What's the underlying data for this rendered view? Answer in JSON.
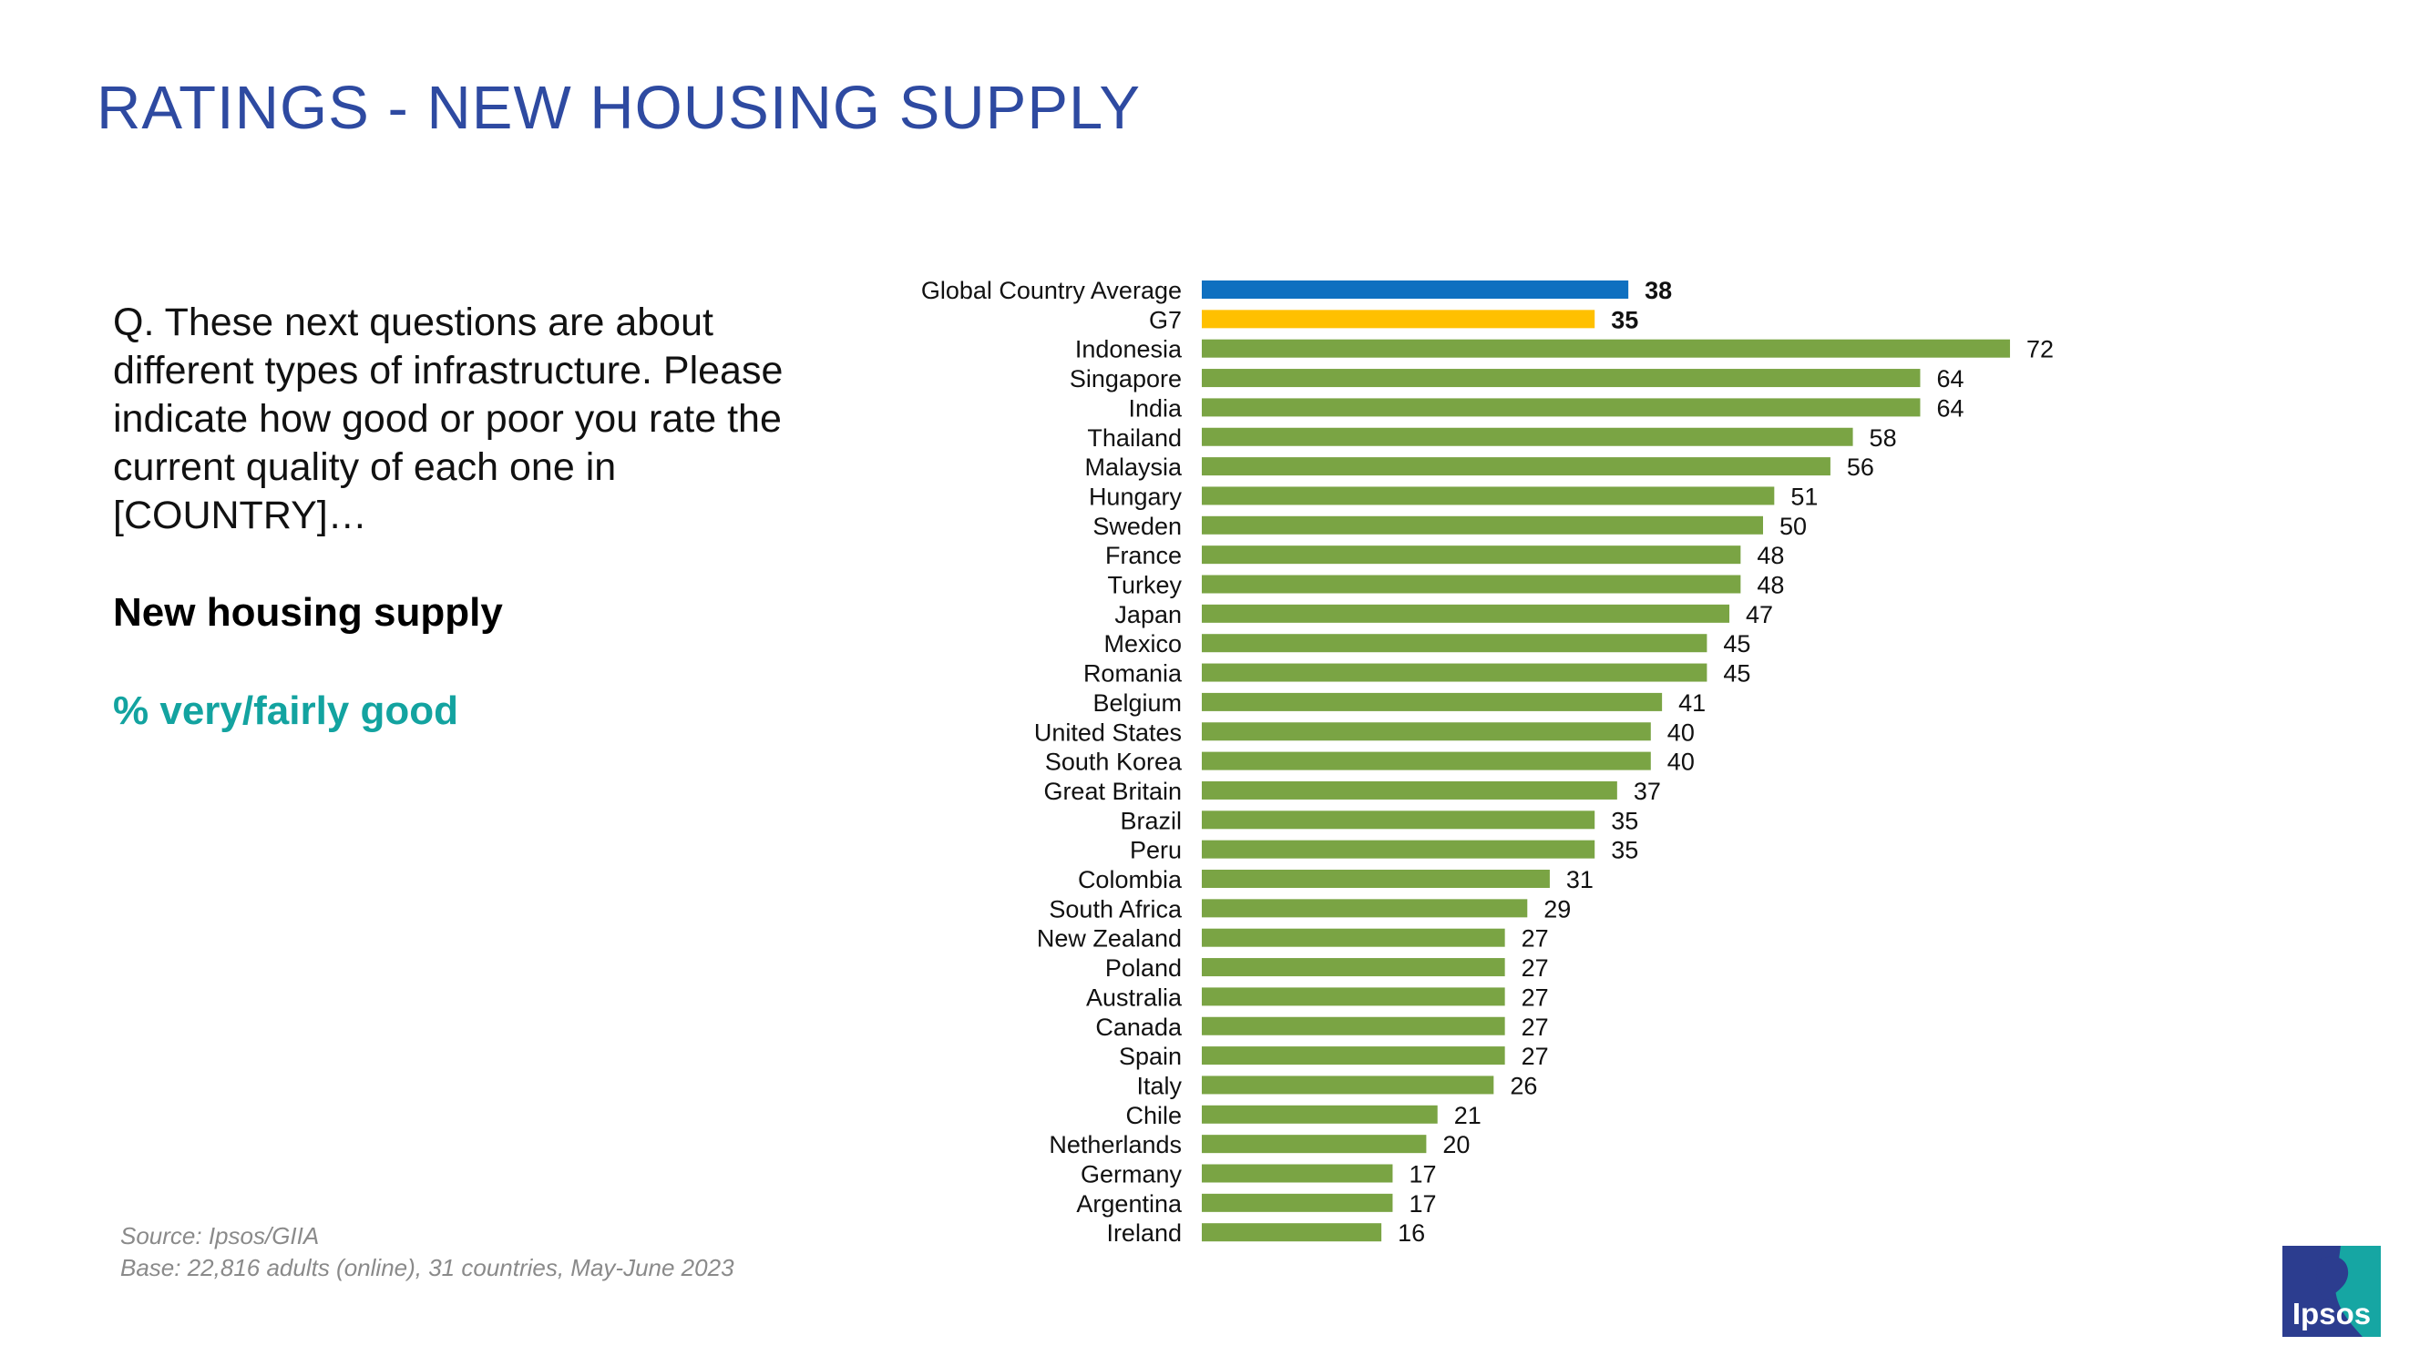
{
  "title": "RATINGS - NEW HOUSING SUPPLY",
  "question": "Q. These next questions are about different types of infrastructure. Please indicate how good or poor you rate the current quality of each one in [COUNTRY]…",
  "subject": "New housing supply",
  "measure": "% very/fairly good",
  "source_line": "Source: Ipsos/GIIA",
  "base_line": "Base: 22,816 adults (online), 31 countries, May-June 2023",
  "logo_text": "Ipsos",
  "colors": {
    "title": "#2e4aa1",
    "global": "#0f70c0",
    "g7": "#ffc000",
    "country": "#7aa444",
    "accent": "#13a3a0"
  },
  "chart_data": {
    "type": "bar",
    "orientation": "horizontal",
    "title": "RATINGS - NEW HOUSING SUPPLY",
    "xlabel": "% very/fairly good",
    "ylabel": "",
    "xlim": [
      0,
      100
    ],
    "grid": false,
    "categories": [
      "Global Country Average",
      "G7",
      "Indonesia",
      "Singapore",
      "India",
      "Thailand",
      "Malaysia",
      "Hungary",
      "Sweden",
      "France",
      "Turkey",
      "Japan",
      "Mexico",
      "Romania",
      "Belgium",
      "United States",
      "South Korea",
      "Great Britain",
      "Brazil",
      "Peru",
      "Colombia",
      "South Africa",
      "New Zealand",
      "Poland",
      "Australia",
      "Canada",
      "Spain",
      "Italy",
      "Chile",
      "Netherlands",
      "Germany",
      "Argentina",
      "Ireland"
    ],
    "values": [
      38,
      35,
      72,
      64,
      64,
      58,
      56,
      51,
      50,
      48,
      48,
      47,
      45,
      45,
      41,
      40,
      40,
      37,
      35,
      35,
      31,
      29,
      27,
      27,
      27,
      27,
      27,
      26,
      21,
      20,
      17,
      17,
      16
    ],
    "highlight": {
      "Global Country Average": "global",
      "G7": "g7"
    }
  }
}
